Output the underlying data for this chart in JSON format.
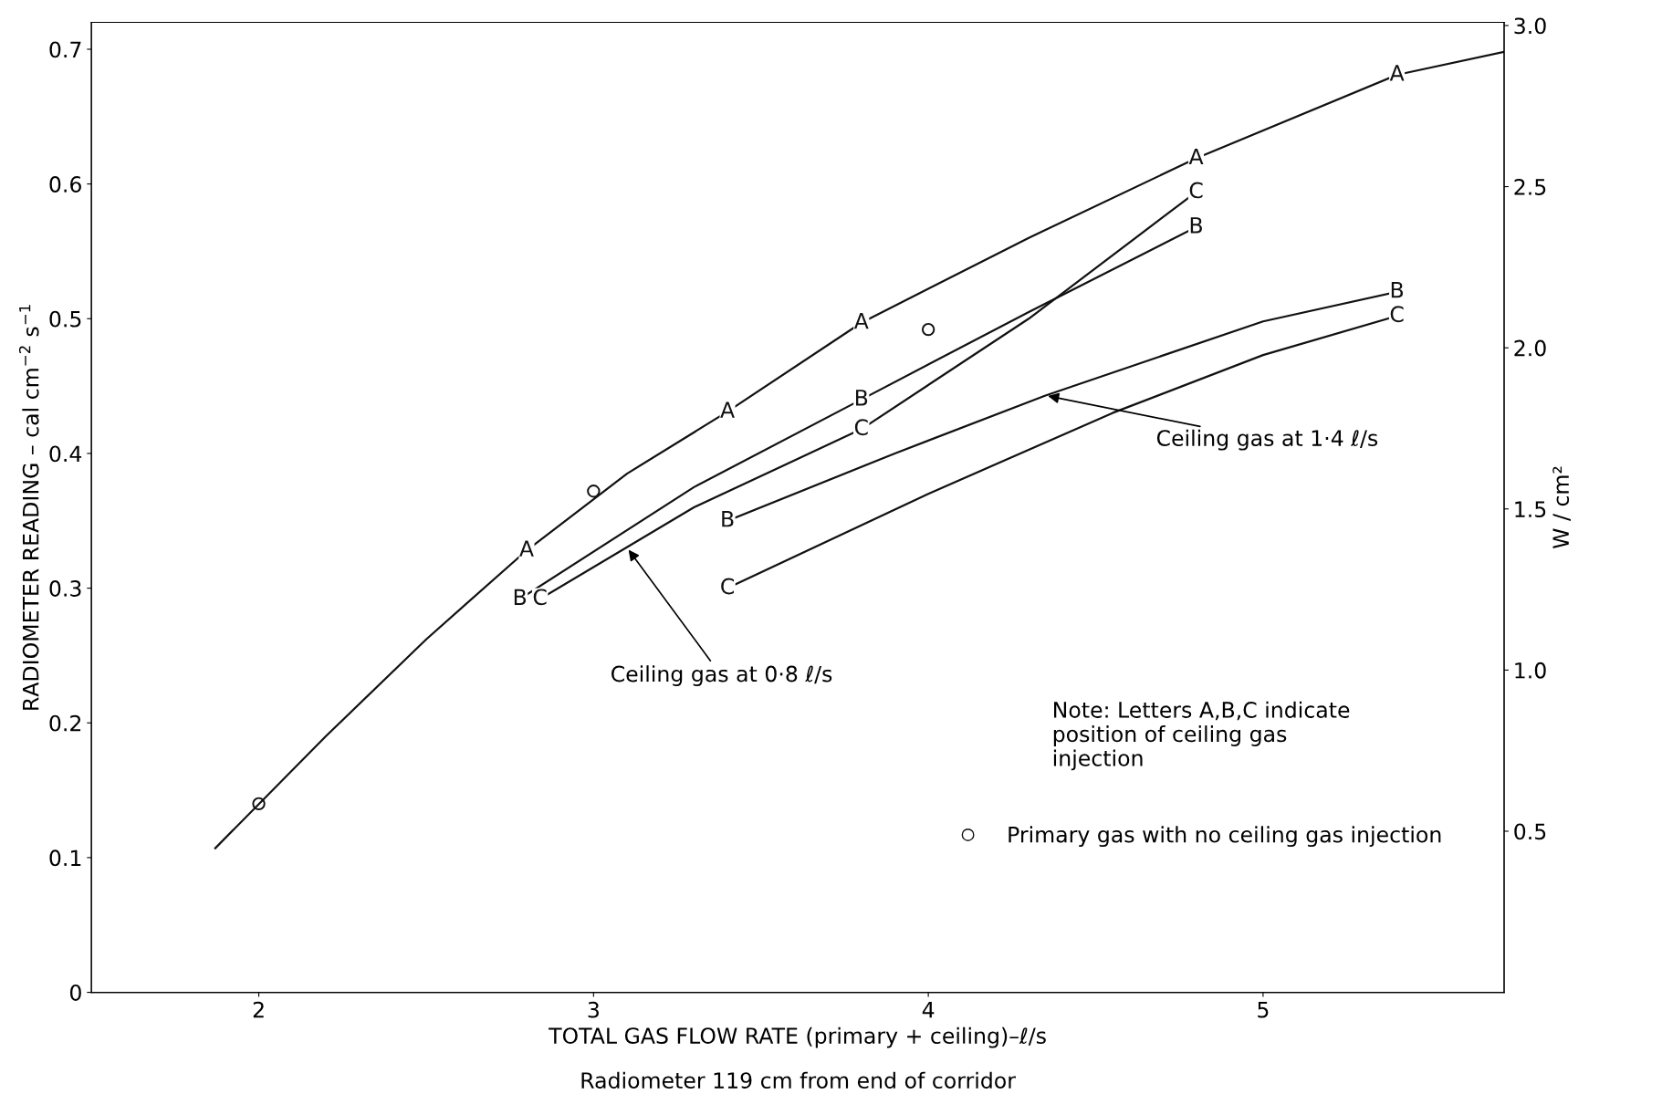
{
  "chart_data": {
    "type": "line",
    "xlabel": "TOTAL GAS FLOW RATE (primary + ceiling)–ℓ/s",
    "ylabel": "RADIOMETER READING – cal cm$^{−2}$ s$^{−1}$",
    "y2label": "W / cm²",
    "xlim": [
      1.5,
      5.72
    ],
    "xticks": [
      2,
      3,
      4,
      5
    ],
    "ylim": [
      0,
      0.72
    ],
    "yticks": [
      0,
      0.1,
      0.2,
      0.3,
      0.4,
      0.5,
      0.6,
      0.7
    ],
    "y2lim": [
      0,
      3.01
    ],
    "y2ticks": [
      0.5,
      {
        "value": 1.0,
        "label": "1.0"
      },
      1.5,
      {
        "value": 2.0,
        "label": "2.0"
      },
      2.5,
      {
        "value": 3.0,
        "label": "3.0"
      }
    ],
    "legend": "bottom right",
    "series": [
      {
        "color": "#111111",
        "x": [
          1.87,
          2.2,
          2.5,
          2.8,
          3.1,
          3.4,
          3.8,
          4.3,
          4.8,
          5.4,
          5.72
        ],
        "values": [
          0.107,
          0.19,
          0.262,
          0.328,
          0.385,
          0.431,
          0.497,
          0.56,
          0.619,
          0.681,
          0.698
        ],
        "value_labels": [
          null,
          null,
          null,
          "A",
          null,
          "A",
          "A",
          null,
          "A",
          "A",
          null
        ]
      },
      {
        "color": "#111111",
        "x": [
          2.78,
          3.3,
          3.8,
          4.3,
          4.8
        ],
        "values": [
          0.292,
          0.375,
          0.44,
          0.505,
          0.568
        ],
        "value_labels": [
          "B",
          null,
          "B",
          null,
          "B"
        ]
      },
      {
        "color": "#111111",
        "x": [
          2.84,
          3.3,
          3.8,
          4.3,
          4.8
        ],
        "values": [
          0.292,
          0.36,
          0.418,
          0.5,
          0.594
        ],
        "value_labels": [
          "C",
          null,
          "C",
          null,
          "C"
        ]
      },
      {
        "color": "#111111",
        "x": [
          3.4,
          3.9,
          4.35,
          5.0,
          5.4
        ],
        "values": [
          0.35,
          0.4,
          0.443,
          0.498,
          0.52
        ],
        "value_labels": [
          "B",
          null,
          null,
          null,
          "B"
        ]
      },
      {
        "color": "#111111",
        "x": [
          3.4,
          4.0,
          4.55,
          5.0,
          5.4
        ],
        "values": [
          0.3,
          0.37,
          0.43,
          0.473,
          0.502
        ],
        "value_labels": [
          "C",
          null,
          null,
          null,
          "C"
        ]
      },
      {
        "type": "scatter",
        "name": "Primary gas with no ceiling gas injection",
        "color": "#111111",
        "marker": "circle",
        "x": [
          2,
          3,
          4
        ],
        "values": [
          0.14,
          0.372,
          0.492
        ]
      }
    ],
    "annotations": [
      {
        "text": "Ceiling gas at 0·8 ℓ/s",
        "x": 3.1,
        "y": 0.33
      },
      {
        "text": "Ceiling gas at 1·4 ℓ/s",
        "x": 4.35,
        "y": 0.443
      },
      "Note: Letters A,B,C indicate\nposition of ceiling gas\ninjection",
      "Radiometer 119 cm from end of corridor"
    ]
  }
}
